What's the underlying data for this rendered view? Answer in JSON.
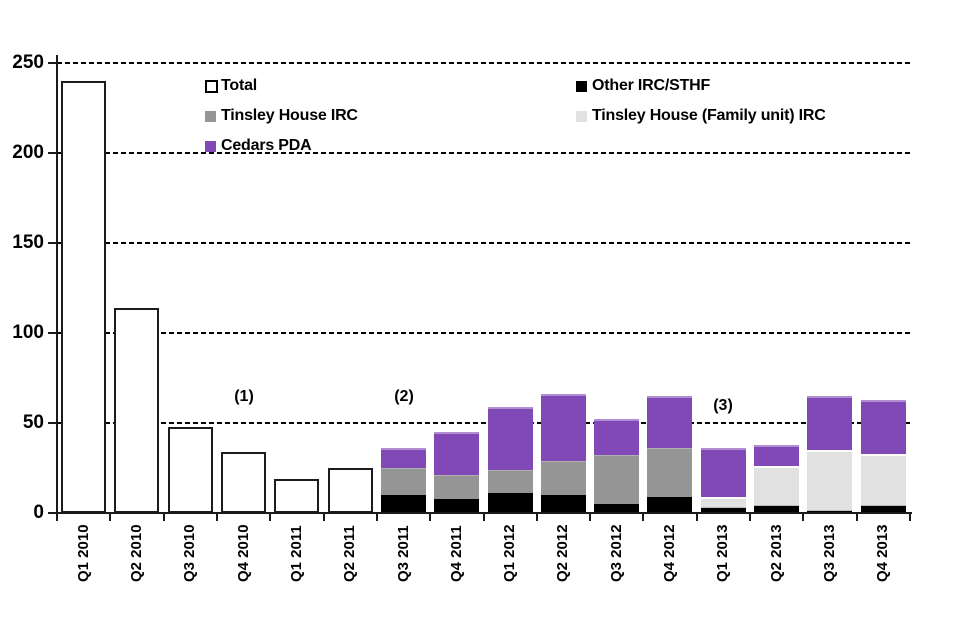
{
  "chart_data": {
    "type": "bar",
    "stacked": true,
    "title": "",
    "xlabel": "",
    "ylabel": "",
    "ylim": [
      0,
      250
    ],
    "yticks": [
      0,
      50,
      100,
      150,
      200,
      250
    ],
    "grid": "dashed-horizontal",
    "legend_position": "top-inside-two-columns",
    "background_color": "#FFFFFF",
    "axis_color": "#1A1A1A",
    "categories": [
      "Q1 2010",
      "Q2 2010",
      "Q3 2010",
      "Q4 2010",
      "Q1 2011",
      "Q2 2011",
      "Q3 2011",
      "Q4 2011",
      "Q1 2012",
      "Q2 2012",
      "Q3 2012",
      "Q4 2012",
      "Q1 2013",
      "Q2 2013",
      "Q3 2013",
      "Q4 2013"
    ],
    "series": [
      {
        "name": "Total",
        "key": "total",
        "style": "outline",
        "color": "#FFFFFF",
        "border_color": "#1C1C1C",
        "values": [
          240,
          114,
          48,
          34,
          19,
          25,
          0,
          0,
          0,
          0,
          0,
          0,
          0,
          0,
          0,
          0
        ]
      },
      {
        "name": "Other IRC/STHF",
        "key": "other",
        "style": "fill",
        "color": "#000000",
        "values": [
          0,
          0,
          0,
          0,
          0,
          0,
          10,
          8,
          11,
          10,
          5,
          9,
          3,
          4,
          1,
          4
        ]
      },
      {
        "name": "Tinsley House IRC",
        "key": "tinsley",
        "style": "fill",
        "color": "#959595",
        "values": [
          0,
          0,
          0,
          0,
          0,
          0,
          15,
          13,
          13,
          19,
          27,
          27,
          0,
          0,
          0,
          0
        ]
      },
      {
        "name": "Tinsley House (Family unit) IRC",
        "key": "tinsley_family",
        "style": "fill",
        "color": "#E1E1E1",
        "values": [
          0,
          0,
          0,
          0,
          0,
          0,
          0,
          0,
          0,
          0,
          0,
          0,
          6,
          22,
          34,
          29
        ]
      },
      {
        "name": "Cedars PDA",
        "key": "cedars",
        "style": "fill",
        "color": "#8049B5",
        "values": [
          0,
          0,
          0,
          0,
          0,
          0,
          11,
          24,
          35,
          37,
          20,
          29,
          27,
          12,
          30,
          30
        ]
      }
    ],
    "annotations": [
      {
        "label": "(1)",
        "category": "Q4 2010",
        "y": 64
      },
      {
        "label": "(2)",
        "category": "Q3 2011",
        "y": 64
      },
      {
        "label": "(3)",
        "category": "Q1 2013",
        "y": 59
      }
    ]
  }
}
